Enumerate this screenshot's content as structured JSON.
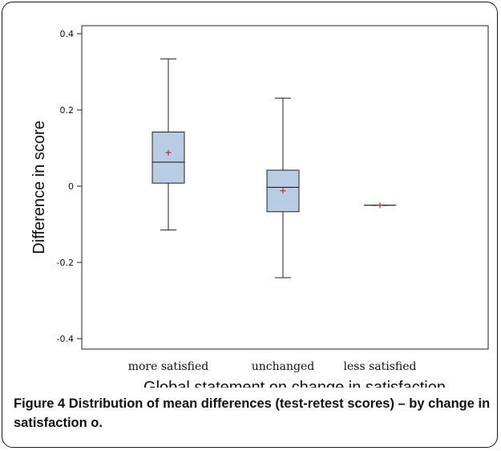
{
  "chart_data": {
    "type": "box",
    "xlabel": "Global statement on change in satisfaction",
    "ylabel": "Difference in score",
    "ylim": [
      -0.42,
      0.42
    ],
    "yticks": [
      0.4,
      0.2,
      0,
      -0.2,
      -0.4
    ],
    "ytick_labels": [
      "0.4",
      "0.2",
      "0",
      "-0.2",
      "-0.4"
    ],
    "categories": [
      "more satisfied",
      "unchanged",
      "less satisfied"
    ],
    "boxes": [
      {
        "category": "more satisfied",
        "min": -0.115,
        "q1": 0.008,
        "median": 0.063,
        "q3": 0.142,
        "max": 0.334,
        "mean": 0.088
      },
      {
        "category": "unchanged",
        "min": -0.24,
        "q1": -0.067,
        "median": -0.003,
        "q3": 0.042,
        "max": 0.231,
        "mean": -0.012
      },
      {
        "category": "less satisfied",
        "min": -0.05,
        "q1": -0.05,
        "median": -0.05,
        "q3": -0.05,
        "max": -0.05,
        "mean": -0.05
      }
    ],
    "grid": false,
    "legend": "none",
    "colors": {
      "box_fill": "#b8cce4",
      "mean_marker": "#d0312d",
      "line": "#222222"
    }
  },
  "caption": {
    "figure_label": "Figure 4",
    "text": "Distribution of mean differences (test-retest scores) – by change in satisfaction o."
  }
}
